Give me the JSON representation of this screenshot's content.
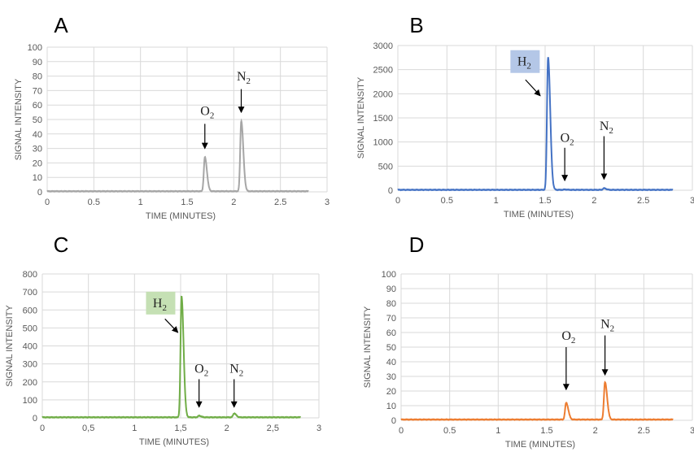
{
  "chart_data": [
    {
      "panel_label": "A",
      "type": "line",
      "color": "#a6a6a6",
      "xlabel": "TIME (MINUTES)",
      "ylabel": "SIGNAL INTENSITY",
      "xlim": [
        0,
        3
      ],
      "ylim": [
        0,
        100
      ],
      "xticks": [
        0,
        0.5,
        1,
        1.5,
        2,
        2.5,
        3
      ],
      "xtick_labels": [
        "0",
        "0.5",
        "1",
        "1.5",
        "2",
        "2.5",
        "3"
      ],
      "yticks": [
        0,
        10,
        20,
        30,
        40,
        50,
        60,
        70,
        80,
        90,
        100
      ],
      "ytick_labels": [
        "0",
        "10",
        "20",
        "30",
        "40",
        "50",
        "60",
        "70",
        "80",
        "90",
        "100"
      ],
      "baseline": 0.4,
      "x_end": 2.8,
      "series": [
        {
          "peaks": [
            {
              "x": 1.69,
              "y": 24
            },
            {
              "x": 2.08,
              "y": 49
            }
          ]
        }
      ],
      "annotations": [
        {
          "text": "O",
          "sub": "2",
          "x": 1.69,
          "y_text": 53,
          "y_arrow_start": 47,
          "y_arrow_end": 30
        },
        {
          "text": "N",
          "sub": "2",
          "x": 2.08,
          "y_text": 77,
          "y_arrow_start": 71,
          "y_arrow_end": 55
        }
      ]
    },
    {
      "panel_label": "B",
      "type": "line",
      "color": "#4472c4",
      "xlabel": "TIME (MINUTES)",
      "ylabel": "SIGNAL INTENSITY",
      "xlim": [
        0,
        3
      ],
      "ylim": [
        0,
        3000
      ],
      "xticks": [
        0,
        0.5,
        1,
        1.5,
        2,
        2.5,
        3
      ],
      "xtick_labels": [
        "0",
        "0.5",
        "1",
        "1.5",
        "2",
        "2.5",
        "3"
      ],
      "yticks": [
        0,
        500,
        1000,
        1500,
        2000,
        2500,
        3000
      ],
      "ytick_labels": [
        "0",
        "500",
        "1000",
        "1500",
        "2000",
        "2500",
        "3000"
      ],
      "baseline": 8,
      "x_end": 2.8,
      "series": [
        {
          "peaks": [
            {
              "x": 1.53,
              "y": 2760
            },
            {
              "x": 1.7,
              "y": 15
            },
            {
              "x": 2.1,
              "y": 40
            }
          ]
        }
      ],
      "annotations": [
        {
          "text": "H",
          "sub": "2",
          "box": "#b4c7e7",
          "x": 1.53,
          "y_text": 2600,
          "box_x": 1.18,
          "arrow_from": [
            1.3,
            2290
          ],
          "arrow_to": [
            1.45,
            1960
          ]
        },
        {
          "text": "O",
          "sub": "2",
          "x": 1.7,
          "y_text": 1000,
          "y_arrow_start": 880,
          "y_arrow_end": 200
        },
        {
          "text": "N",
          "sub": "2",
          "x": 2.1,
          "y_text": 1250,
          "y_arrow_start": 1120,
          "y_arrow_end": 230
        }
      ]
    },
    {
      "panel_label": "C",
      "type": "line",
      "color": "#70ad47",
      "xlabel": "TIME (MINUTES)",
      "ylabel": "SIGNAL INTENSITY",
      "xlim": [
        0,
        3
      ],
      "ylim": [
        0,
        800
      ],
      "xticks": [
        0,
        0.5,
        1,
        1.5,
        2,
        2.5,
        3
      ],
      "xtick_labels": [
        "0",
        "0,5",
        "1",
        "1,5",
        "2",
        "2,5",
        "3"
      ],
      "yticks": [
        0,
        100,
        200,
        300,
        400,
        500,
        600,
        700,
        800
      ],
      "ytick_labels": [
        "0",
        "100",
        "200",
        "300",
        "400",
        "500",
        "600",
        "700",
        "800"
      ],
      "baseline": 3,
      "x_end": 2.8,
      "series": [
        {
          "peaks": [
            {
              "x": 1.51,
              "y": 675
            },
            {
              "x": 1.7,
              "y": 12
            },
            {
              "x": 2.08,
              "y": 25
            }
          ]
        }
      ],
      "annotations": [
        {
          "text": "H",
          "sub": "2",
          "box": "#c5e0b4",
          "x": 1.51,
          "y_text": 620,
          "box_x": 1.16,
          "arrow_from": [
            1.33,
            550
          ],
          "arrow_to": [
            1.47,
            475
          ]
        },
        {
          "text": "O",
          "sub": "2",
          "x": 1.7,
          "y_text": 250,
          "y_arrow_start": 215,
          "y_arrow_end": 60
        },
        {
          "text": "N",
          "sub": "2",
          "x": 2.08,
          "y_text": 250,
          "y_arrow_start": 215,
          "y_arrow_end": 60
        }
      ]
    },
    {
      "panel_label": "D",
      "type": "line",
      "color": "#ed7d31",
      "xlabel": "TIME (MINUTES)",
      "ylabel": "SIGNAL INTENSITY",
      "xlim": [
        0,
        3
      ],
      "ylim": [
        0,
        100
      ],
      "xticks": [
        0,
        0.5,
        1,
        1.5,
        2,
        2.5,
        3
      ],
      "xtick_labels": [
        "0",
        "0.5",
        "1",
        "1.5",
        "2",
        "2.5",
        "3"
      ],
      "yticks": [
        0,
        10,
        20,
        30,
        40,
        50,
        60,
        70,
        80,
        90,
        100
      ],
      "ytick_labels": [
        "0",
        "10",
        "20",
        "30",
        "40",
        "50",
        "60",
        "70",
        "80",
        "90",
        "100"
      ],
      "baseline": 0.5,
      "x_end": 2.8,
      "series": [
        {
          "peaks": [
            {
              "x": 1.7,
              "y": 12
            },
            {
              "x": 2.1,
              "y": 26
            }
          ]
        }
      ],
      "annotations": [
        {
          "text": "O",
          "sub": "2",
          "x": 1.7,
          "y_text": 55,
          "y_arrow_start": 50,
          "y_arrow_end": 21
        },
        {
          "text": "N",
          "sub": "2",
          "x": 2.1,
          "y_text": 63,
          "y_arrow_start": 58,
          "y_arrow_end": 31
        }
      ]
    }
  ]
}
